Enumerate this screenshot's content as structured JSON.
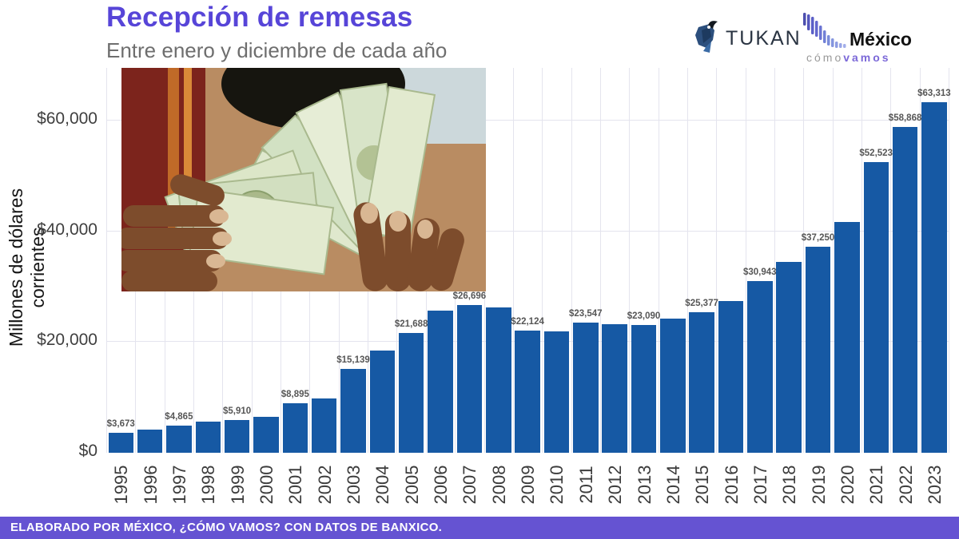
{
  "header": {
    "title": "Recepción de remesas",
    "subtitle": "Entre enero y diciembre de cada año",
    "logos": {
      "tukan": "TUKAN",
      "mcv_name": "México",
      "mcv_tagline_gray": "cómo",
      "mcv_tagline_purple": "vamos"
    }
  },
  "chart_data": {
    "type": "bar",
    "title": "Recepción de remesas",
    "subtitle": "Entre enero y diciembre de cada año",
    "xlabel": "",
    "ylabel": "Millones de dólares corrientes",
    "ylim": [
      0,
      69500
    ],
    "yticks": [
      0,
      20000,
      40000,
      60000
    ],
    "ytick_labels": [
      "$0",
      "$20,000",
      "$40,000",
      "$60,000"
    ],
    "grid": true,
    "bar_color": "#1659a4",
    "legend": "none",
    "series": [
      {
        "year": "1995",
        "value": 3673,
        "label": "$3,673"
      },
      {
        "year": "1996",
        "value": 4200,
        "label": ""
      },
      {
        "year": "1997",
        "value": 4865,
        "label": "$4,865"
      },
      {
        "year": "1998",
        "value": 5600,
        "label": ""
      },
      {
        "year": "1999",
        "value": 5910,
        "label": "$5,910"
      },
      {
        "year": "2000",
        "value": 6550,
        "label": ""
      },
      {
        "year": "2001",
        "value": 8895,
        "label": "$8,895"
      },
      {
        "year": "2002",
        "value": 9780,
        "label": ""
      },
      {
        "year": "2003",
        "value": 15139,
        "label": "$15,139"
      },
      {
        "year": "2004",
        "value": 18400,
        "label": ""
      },
      {
        "year": "2005",
        "value": 21688,
        "label": "$21,688"
      },
      {
        "year": "2006",
        "value": 25650,
        "label": ""
      },
      {
        "year": "2007",
        "value": 26696,
        "label": "$26,696"
      },
      {
        "year": "2008",
        "value": 26200,
        "label": ""
      },
      {
        "year": "2009",
        "value": 22124,
        "label": "$22,124"
      },
      {
        "year": "2010",
        "value": 21950,
        "label": ""
      },
      {
        "year": "2011",
        "value": 23547,
        "label": "$23,547"
      },
      {
        "year": "2012",
        "value": 23250,
        "label": ""
      },
      {
        "year": "2013",
        "value": 23090,
        "label": "$23,090"
      },
      {
        "year": "2014",
        "value": 24300,
        "label": ""
      },
      {
        "year": "2015",
        "value": 25377,
        "label": "$25,377"
      },
      {
        "year": "2016",
        "value": 27400,
        "label": ""
      },
      {
        "year": "2017",
        "value": 30943,
        "label": "$30,943"
      },
      {
        "year": "2018",
        "value": 34400,
        "label": ""
      },
      {
        "year": "2019",
        "value": 37250,
        "label": "$37,250"
      },
      {
        "year": "2020",
        "value": 41700,
        "label": ""
      },
      {
        "year": "2021",
        "value": 52523,
        "label": "$52,523"
      },
      {
        "year": "2022",
        "value": 58868,
        "label": "$58,868"
      },
      {
        "year": "2023",
        "value": 63313,
        "label": "$63,313"
      }
    ]
  },
  "photo_alt": "man-holding-us-dollar-bills",
  "footer": {
    "text": "ELABORADO POR MÉXICO, ¿CÓMO VAMOS? CON DATOS DE BANXICO."
  },
  "colors": {
    "title_purple": "#5745d8",
    "footer_purple": "#6553d2",
    "bar_blue": "#1659a4",
    "gridline": "#e4e4ee",
    "axis_text": "#3f3f3f",
    "data_label": "#565656"
  }
}
